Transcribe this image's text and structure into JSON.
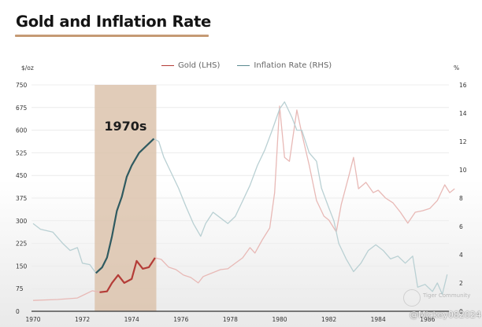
{
  "header": {
    "title": "Gold and Inflation Rate"
  },
  "watermark": {
    "line1": "Tiger Community",
    "line2": "@Mickey082024"
  },
  "chart_data": {
    "type": "line",
    "title": "Gold and Inflation Rate",
    "xlabel": "",
    "ylabel_left": "$/oz",
    "ylabel_right": "%",
    "xlim": [
      1970,
      1987.2
    ],
    "ylim_left": [
      0,
      750
    ],
    "ylim_right": [
      0,
      16
    ],
    "x_ticks": [
      "1970",
      "1972",
      "1974",
      "1976",
      "1978",
      "1980",
      "1982",
      "1984",
      "1986"
    ],
    "y_ticks_left": [
      "0",
      "75",
      "150",
      "225",
      "300",
      "375",
      "450",
      "525",
      "600",
      "675",
      "750"
    ],
    "y_ticks_right": [
      "0",
      "2",
      "4",
      "6",
      "8",
      "10",
      "12",
      "14",
      "16"
    ],
    "grid": true,
    "legend_position": "top-center",
    "highlight": {
      "label": "1970s",
      "x_start": 1972.5,
      "x_end": 1975.0,
      "color": "#dcc3ad"
    },
    "series": [
      {
        "name": "Gold (LHS)",
        "axis": "left",
        "color": "#b43c37",
        "faded_color": "#e8b9b6",
        "points": [
          [
            1970.0,
            36
          ],
          [
            1971.0,
            39
          ],
          [
            1971.8,
            44
          ],
          [
            1972.0,
            52
          ],
          [
            1972.4,
            68
          ],
          [
            1972.7,
            63
          ],
          [
            1973.0,
            66
          ],
          [
            1973.2,
            94
          ],
          [
            1973.45,
            120
          ],
          [
            1973.7,
            94
          ],
          [
            1974.0,
            107
          ],
          [
            1974.2,
            167
          ],
          [
            1974.45,
            141
          ],
          [
            1974.7,
            146
          ],
          [
            1974.95,
            177
          ],
          [
            1975.2,
            172
          ],
          [
            1975.5,
            146
          ],
          [
            1975.8,
            138
          ],
          [
            1976.1,
            120
          ],
          [
            1976.4,
            112
          ],
          [
            1976.7,
            94
          ],
          [
            1976.9,
            115
          ],
          [
            1977.2,
            125
          ],
          [
            1977.6,
            138
          ],
          [
            1977.9,
            141
          ],
          [
            1978.2,
            159
          ],
          [
            1978.5,
            177
          ],
          [
            1978.8,
            211
          ],
          [
            1979.0,
            193
          ],
          [
            1979.3,
            237
          ],
          [
            1979.6,
            276
          ],
          [
            1979.8,
            393
          ],
          [
            1980.0,
            680
          ],
          [
            1980.2,
            510
          ],
          [
            1980.4,
            497
          ],
          [
            1980.7,
            667
          ],
          [
            1980.9,
            589
          ],
          [
            1981.2,
            484
          ],
          [
            1981.5,
            367
          ],
          [
            1981.8,
            315
          ],
          [
            1982.0,
            302
          ],
          [
            1982.3,
            263
          ],
          [
            1982.5,
            354
          ],
          [
            1982.8,
            445
          ],
          [
            1983.0,
            510
          ],
          [
            1983.2,
            406
          ],
          [
            1983.5,
            427
          ],
          [
            1983.8,
            393
          ],
          [
            1984.0,
            401
          ],
          [
            1984.3,
            375
          ],
          [
            1984.6,
            359
          ],
          [
            1984.9,
            328
          ],
          [
            1985.2,
            292
          ],
          [
            1985.5,
            328
          ],
          [
            1985.8,
            333
          ],
          [
            1986.1,
            341
          ],
          [
            1986.4,
            367
          ],
          [
            1986.7,
            419
          ],
          [
            1986.9,
            393
          ],
          [
            1987.1,
            406
          ]
        ]
      },
      {
        "name": "Inflation Rate (RHS)",
        "axis": "right",
        "color": "#2f5a60",
        "faded_color": "#b9d0d3",
        "points": [
          [
            1970.0,
            6.2
          ],
          [
            1970.3,
            5.8
          ],
          [
            1970.8,
            5.6
          ],
          [
            1971.2,
            4.8
          ],
          [
            1971.5,
            4.3
          ],
          [
            1971.8,
            4.5
          ],
          [
            1972.0,
            3.4
          ],
          [
            1972.3,
            3.3
          ],
          [
            1972.55,
            2.7
          ],
          [
            1972.8,
            3.1
          ],
          [
            1973.0,
            3.8
          ],
          [
            1973.2,
            5.3
          ],
          [
            1973.4,
            7.1
          ],
          [
            1973.6,
            8.1
          ],
          [
            1973.8,
            9.5
          ],
          [
            1974.0,
            10.3
          ],
          [
            1974.3,
            11.2
          ],
          [
            1974.6,
            11.7
          ],
          [
            1974.9,
            12.2
          ],
          [
            1975.1,
            12.0
          ],
          [
            1975.3,
            10.9
          ],
          [
            1975.6,
            9.8
          ],
          [
            1975.9,
            8.7
          ],
          [
            1976.2,
            7.4
          ],
          [
            1976.5,
            6.2
          ],
          [
            1976.8,
            5.3
          ],
          [
            1977.0,
            6.2
          ],
          [
            1977.3,
            7.0
          ],
          [
            1977.6,
            6.6
          ],
          [
            1977.9,
            6.2
          ],
          [
            1978.2,
            6.7
          ],
          [
            1978.5,
            7.8
          ],
          [
            1978.8,
            8.9
          ],
          [
            1979.1,
            10.3
          ],
          [
            1979.4,
            11.4
          ],
          [
            1979.7,
            12.8
          ],
          [
            1980.0,
            14.3
          ],
          [
            1980.2,
            14.8
          ],
          [
            1980.5,
            13.7
          ],
          [
            1980.7,
            12.8
          ],
          [
            1980.9,
            12.8
          ],
          [
            1981.2,
            11.2
          ],
          [
            1981.5,
            10.6
          ],
          [
            1981.7,
            8.7
          ],
          [
            1982.0,
            7.3
          ],
          [
            1982.2,
            6.4
          ],
          [
            1982.4,
            4.8
          ],
          [
            1982.7,
            3.7
          ],
          [
            1983.0,
            2.8
          ],
          [
            1983.3,
            3.4
          ],
          [
            1983.6,
            4.3
          ],
          [
            1983.9,
            4.7
          ],
          [
            1984.2,
            4.3
          ],
          [
            1984.5,
            3.7
          ],
          [
            1984.8,
            3.9
          ],
          [
            1985.1,
            3.4
          ],
          [
            1985.4,
            3.9
          ],
          [
            1985.6,
            1.7
          ],
          [
            1985.9,
            1.9
          ],
          [
            1986.2,
            1.4
          ],
          [
            1986.4,
            2.0
          ],
          [
            1986.6,
            1.2
          ],
          [
            1986.8,
            2.6
          ]
        ]
      }
    ]
  }
}
